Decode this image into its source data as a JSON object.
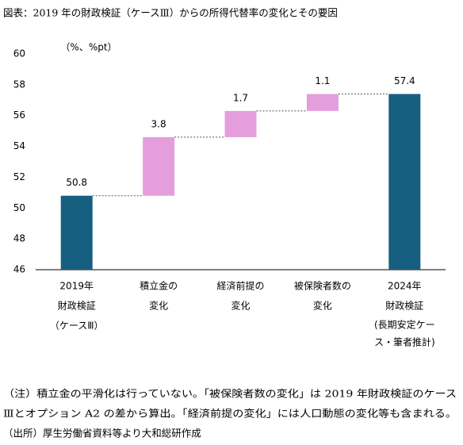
{
  "chart_data": {
    "type": "waterfall",
    "title": "図表：2019 年の財政検証（ケースⅢ）からの所得代替率の変化とその要因",
    "y_label": "（%、%pt）",
    "categories": [
      [
        "2019年",
        "財政検証",
        "（ケースⅢ）"
      ],
      [
        "積立金の",
        "変化"
      ],
      [
        "経済前提の",
        "変化"
      ],
      [
        "被保険者数の",
        "変化"
      ],
      [
        "2024年",
        "財政検証",
        "(長期安定ケー",
        "ス・筆者推計)"
      ]
    ],
    "values": [
      50.8,
      3.8,
      1.7,
      1.1,
      57.4
    ],
    "totals": [
      true,
      false,
      false,
      false,
      true
    ],
    "total_color": "#175f80",
    "change_color": "#e59edc",
    "ylim": [
      46,
      60
    ],
    "yticks": [
      46,
      48,
      50,
      52,
      54,
      56,
      58,
      60
    ],
    "notes": [
      "（注）積立金の平滑化は行っていない。「被保険者数の変化」は 2019 年財政検証のケース",
      "Ⅲとオプション A2 の差から算出。「経済前提の変化」には人口動態の変化等も含まれる。",
      "（出所）厚生労働省資料等より大和総研作成"
    ]
  }
}
